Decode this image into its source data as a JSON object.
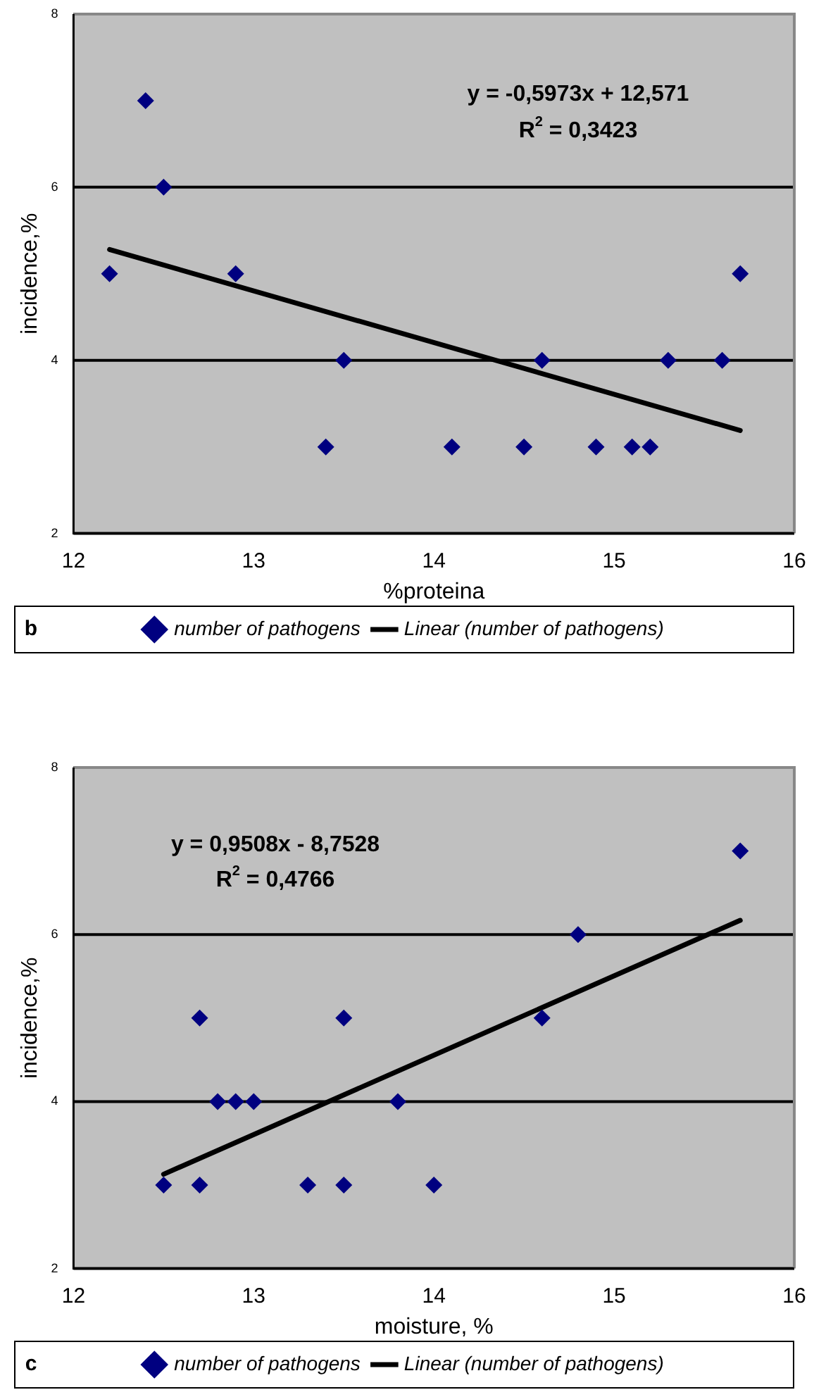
{
  "chart_data": [
    {
      "type": "scatter",
      "xlabel": "%proteina",
      "ylabel": "incidence,%",
      "xlim": [
        12,
        16
      ],
      "xticks": [
        12,
        13,
        14,
        15,
        16
      ],
      "ylim": [
        2,
        8
      ],
      "yticks": [
        2,
        4,
        6,
        8
      ],
      "grid": "y",
      "legend": "bottom",
      "marker": "diamond",
      "annotations": [
        "y = -0,5973x + 12,571",
        "R$^{2}$ = 0,3423",
        "b"
      ],
      "series": [
        {
          "name": "number of pathogens",
          "color": "#000080",
          "x": [
            12.2,
            12.4,
            12.5,
            12.9,
            13.4,
            13.5,
            14.1,
            14.5,
            14.6,
            14.9,
            15.1,
            15.2,
            15.3,
            15.6,
            15.7
          ],
          "values": [
            5,
            7,
            6,
            5,
            3,
            4,
            3,
            3,
            4,
            3,
            3,
            3,
            4,
            4,
            5
          ]
        },
        {
          "name": "Linear (number of pathogens)",
          "type": "line",
          "marker": "none",
          "color": "#000000",
          "x": [
            12.2,
            15.7
          ],
          "values": [
            5.28,
            3.19
          ]
        }
      ]
    },
    {
      "type": "scatter",
      "xlabel": "moisture, %",
      "ylabel": "incidence,%",
      "xlim": [
        12,
        16
      ],
      "xticks": [
        12,
        13,
        14,
        15,
        16
      ],
      "ylim": [
        2,
        8
      ],
      "yticks": [
        2,
        4,
        6,
        8
      ],
      "grid": "y",
      "legend": "bottom",
      "marker": "diamond",
      "annotations": [
        "y = 0,9508x - 8,7528",
        "R$^{2}$ = 0,4766",
        "c"
      ],
      "series": [
        {
          "name": "number of pathogens",
          "color": "#000080",
          "x": [
            12.5,
            12.7,
            12.7,
            12.8,
            12.9,
            13.0,
            13.3,
            13.5,
            13.5,
            13.8,
            14.0,
            14.6,
            14.8,
            15.7
          ],
          "values": [
            3,
            5,
            3,
            4,
            4,
            4,
            3,
            5,
            3,
            4,
            3,
            5,
            6,
            7
          ]
        },
        {
          "name": "Linear (number of pathogens)",
          "type": "line",
          "marker": "none",
          "color": "#000000",
          "x": [
            12.5,
            15.7
          ],
          "values": [
            3.13,
            6.17
          ]
        }
      ]
    }
  ]
}
